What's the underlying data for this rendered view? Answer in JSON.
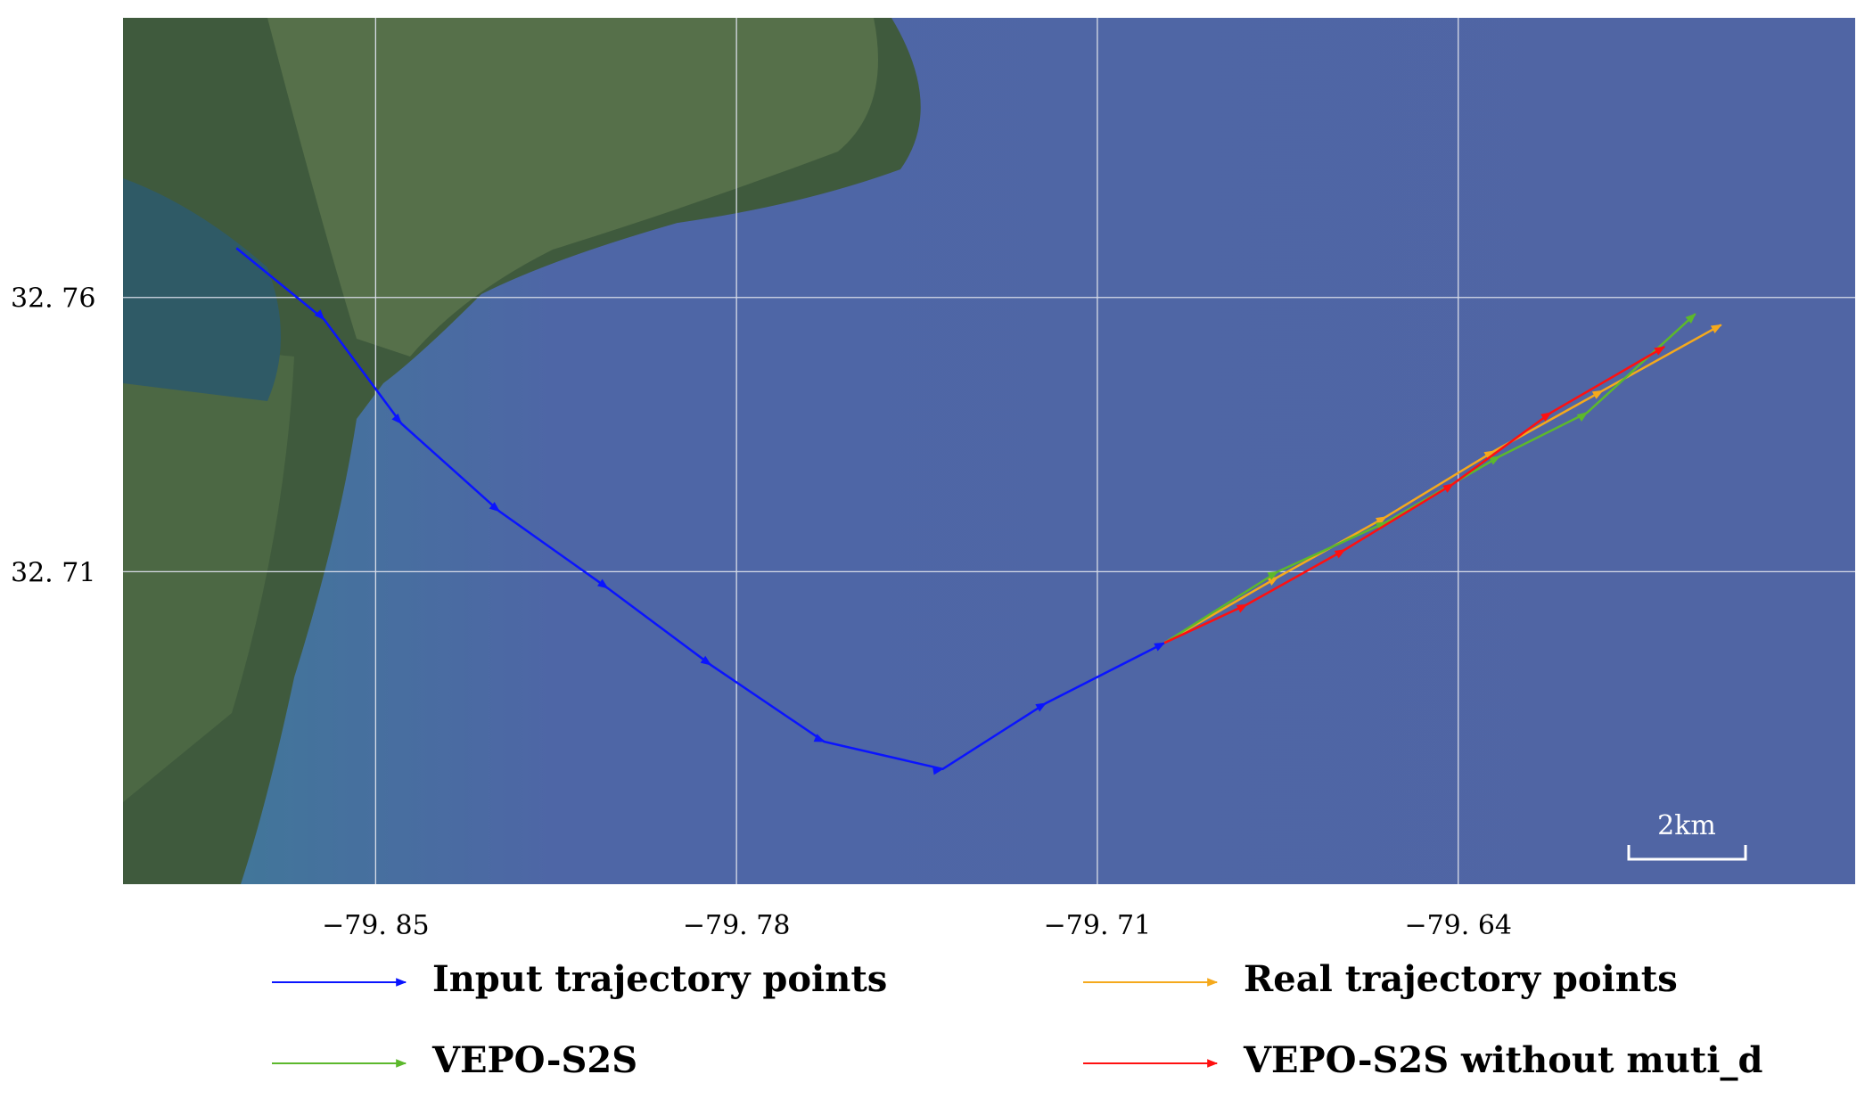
{
  "chart_data": {
    "type": "line",
    "xlim": [
      -79.899,
      -79.563
    ],
    "ylim": [
      32.653,
      32.811
    ],
    "xticks": [
      {
        "value": -79.85,
        "label": "−79. 85"
      },
      {
        "value": -79.78,
        "label": "−79. 78"
      },
      {
        "value": -79.71,
        "label": "−79. 71"
      },
      {
        "value": -79.64,
        "label": "−79. 64"
      }
    ],
    "yticks": [
      {
        "value": 32.71,
        "label": "32. 71"
      },
      {
        "value": 32.76,
        "label": "32. 76"
      }
    ],
    "grid": true,
    "scale_label": "2km",
    "series": [
      {
        "name": "Input trajectory points",
        "color": "#0a14ff",
        "x": [
          -79.877,
          -79.86,
          -79.845,
          -79.826,
          -79.805,
          -79.785,
          -79.763,
          -79.74,
          -79.72,
          -79.697
        ],
        "values": [
          32.769,
          32.756,
          32.737,
          32.721,
          32.707,
          32.693,
          32.679,
          32.674,
          32.686,
          32.697
        ]
      },
      {
        "name": "Real trajectory points",
        "color": "#f5a91c",
        "x": [
          -79.697,
          -79.675,
          -79.654,
          -79.633,
          -79.612,
          -79.589
        ],
        "values": [
          32.697,
          32.709,
          32.72,
          32.732,
          32.743,
          32.755
        ]
      },
      {
        "name": "VEPO-S2S",
        "color": "#5cb82c",
        "x": [
          -79.697,
          -79.675,
          -79.654,
          -79.632,
          -79.615,
          -79.594
        ],
        "values": [
          32.697,
          32.71,
          32.719,
          32.731,
          32.739,
          32.757
        ]
      },
      {
        "name": "VEPO-S2S without muti_d",
        "color": "#ff1010",
        "x": [
          -79.697,
          -79.681,
          -79.662,
          -79.641,
          -79.622,
          -79.6
        ],
        "values": [
          32.697,
          32.704,
          32.714,
          32.726,
          32.739,
          32.751
        ]
      }
    ]
  }
}
